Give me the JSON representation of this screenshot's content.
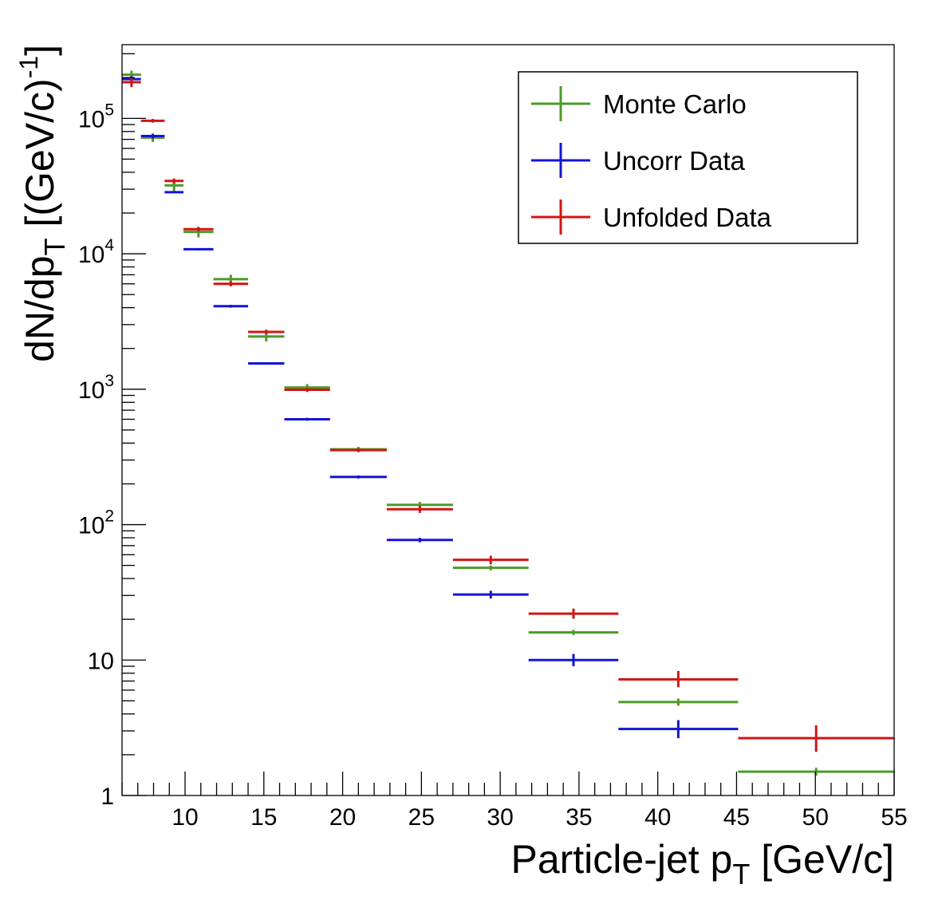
{
  "chart_data": {
    "type": "scatter",
    "title": "",
    "xlabel": {
      "main": "Particle-jet p",
      "sub": "T",
      "tail": " [GeV/c]"
    },
    "ylabel": {
      "main": "dN/dp",
      "sub": "T",
      "mid": " [(GeV/c)",
      "sup": "-1",
      "tail": "]"
    },
    "xlim": [
      6,
      55
    ],
    "ylim": [
      1,
      350000
    ],
    "yscale": "log",
    "grid": false,
    "legend_position": "top-right",
    "x_ticks": [
      {
        "value": 10,
        "label": "10"
      },
      {
        "value": 15,
        "label": "15"
      },
      {
        "value": 20,
        "label": "20"
      },
      {
        "value": 25,
        "label": "25"
      },
      {
        "value": 30,
        "label": "30"
      },
      {
        "value": 35,
        "label": "35"
      },
      {
        "value": 40,
        "label": "40"
      },
      {
        "value": 45,
        "label": "45"
      },
      {
        "value": 50,
        "label": "50"
      },
      {
        "value": 55,
        "label": "55"
      }
    ],
    "y_ticks": [
      {
        "value": 1,
        "base": "1",
        "exp": ""
      },
      {
        "value": 10,
        "base": "10",
        "exp": ""
      },
      {
        "value": 100,
        "base": "10",
        "exp": "2"
      },
      {
        "value": 1000,
        "base": "10",
        "exp": "3"
      },
      {
        "value": 10000,
        "base": "10",
        "exp": "4"
      },
      {
        "value": 100000,
        "base": "10",
        "exp": "5"
      }
    ],
    "series": [
      {
        "name": "Monte Carlo",
        "color": "#4e9a2a",
        "points": [
          {
            "xlo": 6.0,
            "xhi": 7.2,
            "x": 6.6,
            "y": 210000,
            "ylo": 195000,
            "yhi": 225000
          },
          {
            "xlo": 7.2,
            "xhi": 8.7,
            "x": 7.95,
            "y": 72000,
            "ylo": 67000,
            "yhi": 77000
          },
          {
            "xlo": 8.7,
            "xhi": 9.9,
            "x": 9.3,
            "y": 32000,
            "ylo": 29000,
            "yhi": 35000
          },
          {
            "xlo": 9.9,
            "xhi": 11.8,
            "x": 10.85,
            "y": 14500,
            "ylo": 13200,
            "yhi": 15800
          },
          {
            "xlo": 11.8,
            "xhi": 14.0,
            "x": 12.9,
            "y": 6500,
            "ylo": 6000,
            "yhi": 7000
          },
          {
            "xlo": 14.0,
            "xhi": 16.3,
            "x": 15.15,
            "y": 2450,
            "ylo": 2250,
            "yhi": 2650
          },
          {
            "xlo": 16.3,
            "xhi": 19.2,
            "x": 17.75,
            "y": 1030,
            "ylo": 970,
            "yhi": 1090
          },
          {
            "xlo": 19.2,
            "xhi": 22.8,
            "x": 21.0,
            "y": 360,
            "ylo": 345,
            "yhi": 375
          },
          {
            "xlo": 22.8,
            "xhi": 27.0,
            "x": 24.9,
            "y": 140,
            "ylo": 133,
            "yhi": 147
          },
          {
            "xlo": 27.0,
            "xhi": 31.8,
            "x": 29.4,
            "y": 48,
            "ylo": 46,
            "yhi": 50
          },
          {
            "xlo": 31.8,
            "xhi": 37.5,
            "x": 34.65,
            "y": 16,
            "ylo": 15.3,
            "yhi": 16.7
          },
          {
            "xlo": 37.5,
            "xhi": 45.1,
            "x": 41.3,
            "y": 4.9,
            "ylo": 4.6,
            "yhi": 5.2
          },
          {
            "xlo": 45.1,
            "xhi": 55.0,
            "x": 50.05,
            "y": 1.5,
            "ylo": 1.4,
            "yhi": 1.6
          }
        ]
      },
      {
        "name": "Uncorr Data",
        "color": "#1414d8",
        "points": [
          {
            "xlo": 6.0,
            "xhi": 7.2,
            "x": 6.6,
            "y": 195000,
            "ylo": 185000,
            "yhi": 205000
          },
          {
            "xlo": 7.2,
            "xhi": 8.7,
            "x": 7.95,
            "y": 74000,
            "ylo": 71000,
            "yhi": 77000
          },
          {
            "xlo": 8.7,
            "xhi": 9.9,
            "x": 9.3,
            "y": 28500,
            "ylo": 28000,
            "yhi": 29000
          },
          {
            "xlo": 9.9,
            "xhi": 11.8,
            "x": 10.85,
            "y": 10800,
            "ylo": 10600,
            "yhi": 11000
          },
          {
            "xlo": 11.8,
            "xhi": 14.0,
            "x": 12.9,
            "y": 4100,
            "ylo": 4000,
            "yhi": 4200
          },
          {
            "xlo": 14.0,
            "xhi": 16.3,
            "x": 15.15,
            "y": 1550,
            "ylo": 1520,
            "yhi": 1580
          },
          {
            "xlo": 16.3,
            "xhi": 19.2,
            "x": 17.75,
            "y": 600,
            "ylo": 585,
            "yhi": 615
          },
          {
            "xlo": 19.2,
            "xhi": 22.8,
            "x": 21.0,
            "y": 225,
            "ylo": 219,
            "yhi": 231
          },
          {
            "xlo": 22.8,
            "xhi": 27.0,
            "x": 24.9,
            "y": 77,
            "ylo": 74,
            "yhi": 80
          },
          {
            "xlo": 27.0,
            "xhi": 31.8,
            "x": 29.4,
            "y": 30.5,
            "ylo": 28.5,
            "yhi": 32.5
          },
          {
            "xlo": 31.8,
            "xhi": 37.5,
            "x": 34.65,
            "y": 10,
            "ylo": 9.0,
            "yhi": 11.1
          },
          {
            "xlo": 37.5,
            "xhi": 45.1,
            "x": 41.3,
            "y": 3.1,
            "ylo": 2.65,
            "yhi": 3.6
          }
        ]
      },
      {
        "name": "Unfolded Data",
        "color": "#d41414",
        "points": [
          {
            "xlo": 6.0,
            "xhi": 7.2,
            "x": 6.6,
            "y": 185000,
            "ylo": 170000,
            "yhi": 200000
          },
          {
            "xlo": 7.2,
            "xhi": 8.7,
            "x": 7.95,
            "y": 96000,
            "ylo": 93000,
            "yhi": 99000
          },
          {
            "xlo": 8.7,
            "xhi": 9.9,
            "x": 9.3,
            "y": 34500,
            "ylo": 33000,
            "yhi": 36000
          },
          {
            "xlo": 9.9,
            "xhi": 11.8,
            "x": 10.85,
            "y": 15200,
            "ylo": 14600,
            "yhi": 15800
          },
          {
            "xlo": 11.8,
            "xhi": 14.0,
            "x": 12.9,
            "y": 6000,
            "ylo": 5750,
            "yhi": 6250
          },
          {
            "xlo": 14.0,
            "xhi": 16.3,
            "x": 15.15,
            "y": 2650,
            "ylo": 2550,
            "yhi": 2750
          },
          {
            "xlo": 16.3,
            "xhi": 19.2,
            "x": 17.75,
            "y": 990,
            "ylo": 955,
            "yhi": 1025
          },
          {
            "xlo": 19.2,
            "xhi": 22.8,
            "x": 21.0,
            "y": 355,
            "ylo": 343,
            "yhi": 367
          },
          {
            "xlo": 22.8,
            "xhi": 27.0,
            "x": 24.9,
            "y": 130,
            "ylo": 122,
            "yhi": 138
          },
          {
            "xlo": 27.0,
            "xhi": 31.8,
            "x": 29.4,
            "y": 55,
            "ylo": 51,
            "yhi": 59
          },
          {
            "xlo": 31.8,
            "xhi": 37.5,
            "x": 34.65,
            "y": 22,
            "ylo": 20.2,
            "yhi": 24.0
          },
          {
            "xlo": 37.5,
            "xhi": 45.1,
            "x": 41.3,
            "y": 7.2,
            "ylo": 6.3,
            "yhi": 8.3
          },
          {
            "xlo": 45.1,
            "xhi": 55.0,
            "x": 50.05,
            "y": 2.65,
            "ylo": 2.1,
            "yhi": 3.3
          }
        ]
      }
    ]
  }
}
